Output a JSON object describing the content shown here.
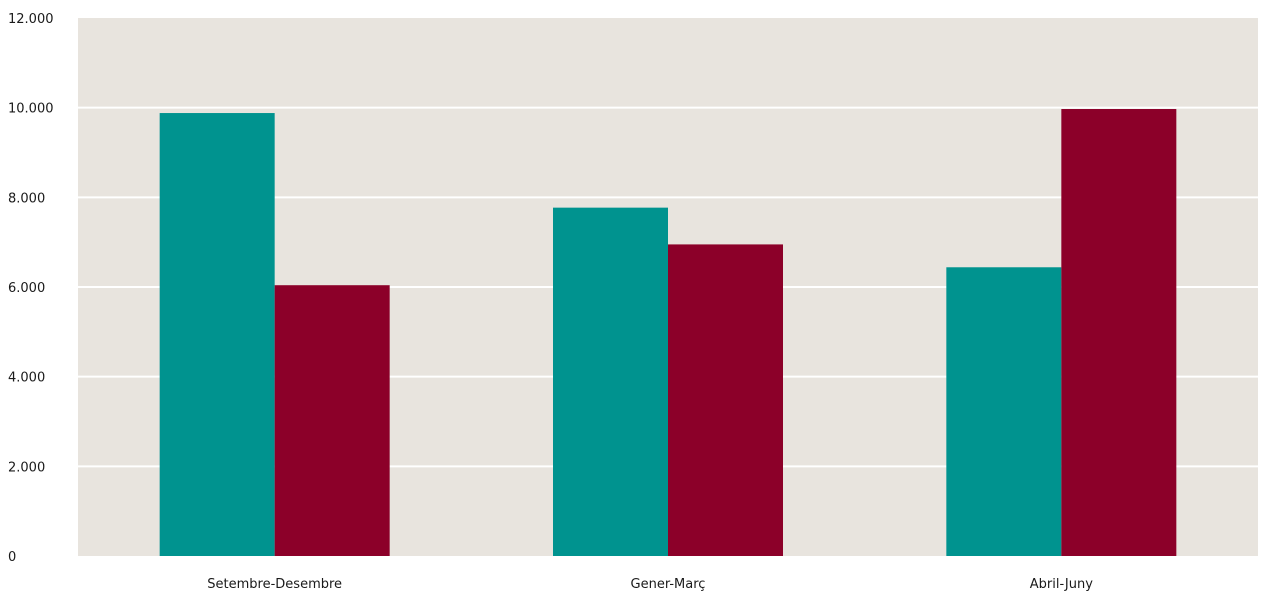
{
  "chart_data": {
    "type": "bar",
    "title": "",
    "xlabel": "",
    "ylabel": "",
    "categories": [
      "Setembre-Desembre",
      "Gener-Març",
      "Abril-Juny"
    ],
    "series": [
      {
        "values": [
          9880,
          7770,
          6440
        ],
        "color": "#00938f"
      },
      {
        "values": [
          6040,
          6950,
          9970
        ],
        "color": "#8c0029"
      }
    ],
    "ylim": [
      0,
      12000
    ],
    "yticks": [
      0,
      2000,
      4000,
      6000,
      8000,
      10000,
      12000
    ],
    "ytick_labels": [
      "0",
      "2.000",
      "4.000",
      "6.000",
      "8.000",
      "10.000",
      "12.000"
    ],
    "grid": true,
    "legend": "none",
    "plot_background": "#e8e4de",
    "gridline_color": "#ffffff"
  }
}
